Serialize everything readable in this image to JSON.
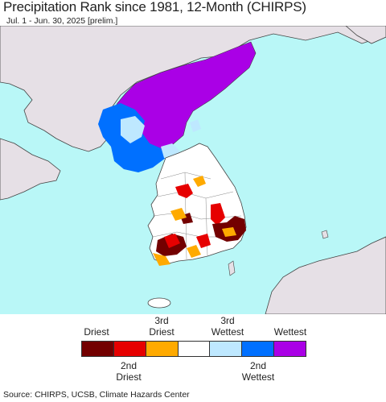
{
  "header": {
    "title": "Precipitation Rank since 1981, 12-Month (CHIRPS)",
    "subtitle": "Jul. 1 - Jun. 30, 2025 [prelim.]"
  },
  "colors": {
    "ocean": "#b9f7f7",
    "land": "#e6e0e6",
    "border": "#444444",
    "driest": "#730000",
    "second_driest": "#e60000",
    "third_driest": "#ffaa00",
    "normal": "#ffffff",
    "third_wettest": "#bee8ff",
    "second_wettest": "#0070ff",
    "wettest": "#aa00e6"
  },
  "legend": {
    "top_labels": [
      "Driest",
      "3rd\nDriest",
      "3rd\nWettest",
      "Wettest"
    ],
    "bottom_labels": [
      "2nd\nDriest",
      "2nd\nWettest"
    ],
    "swatches": [
      "driest",
      "second_driest",
      "third_driest",
      "normal",
      "third_wettest",
      "second_wettest",
      "wettest"
    ]
  },
  "footer": {
    "source": "Source: CHIRPS, UCSB, Climate Hazards Center"
  }
}
